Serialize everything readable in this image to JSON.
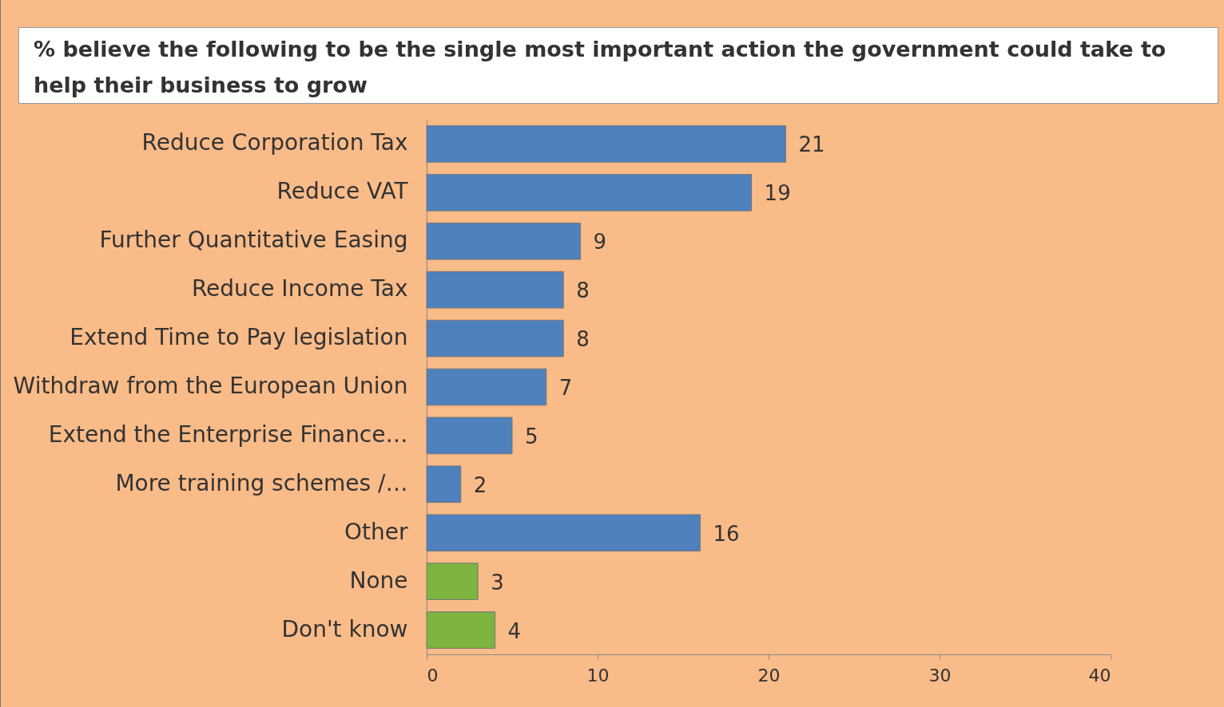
{
  "chart_data": {
    "type": "bar",
    "orientation": "horizontal",
    "title": "% believe the following to be the single most important action the government could take to help their business to grow",
    "categories": [
      "Reduce Corporation Tax",
      "Reduce VAT",
      "Further Quantitative Easing",
      "Reduce Income Tax",
      "Extend Time to Pay legislation",
      "Withdraw from the European Union",
      "Extend the Enterprise Finance…",
      "More training schemes /…",
      "Other",
      "None",
      "Don't know"
    ],
    "values": [
      21,
      19,
      9,
      8,
      8,
      7,
      5,
      2,
      16,
      3,
      4
    ],
    "colors": [
      "#4f81bd",
      "#4f81bd",
      "#4f81bd",
      "#4f81bd",
      "#4f81bd",
      "#4f81bd",
      "#4f81bd",
      "#4f81bd",
      "#4f81bd",
      "#7db33f",
      "#7db33f"
    ],
    "xlim": [
      0,
      40
    ],
    "xticks": [
      0,
      10,
      20,
      30,
      40
    ],
    "data_labels": true,
    "grid": false
  }
}
